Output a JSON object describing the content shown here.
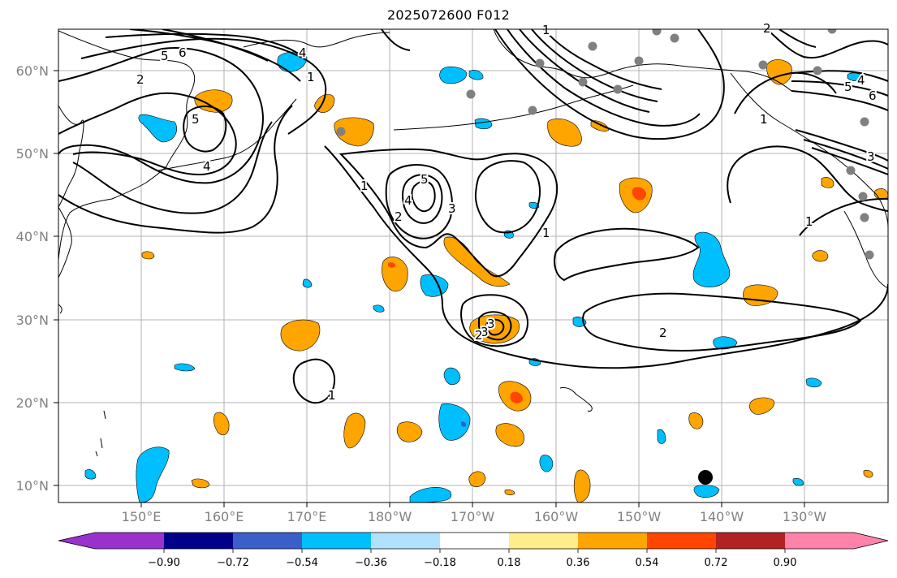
{
  "title": "2025072600 F012",
  "map": {
    "lat_labels": [
      "60°N",
      "50°N",
      "40°N",
      "30°N",
      "20°N",
      "10°N"
    ],
    "lon_labels": [
      "150°E",
      "160°E",
      "170°E",
      "180°W",
      "170°W",
      "160°W",
      "150°W",
      "140°W",
      "130°W"
    ],
    "grid": true,
    "contour_color": "#000000",
    "coastline_color": "#000000",
    "station_marker_color": "#808080",
    "storm_marker_color": "#000000"
  },
  "colorbar": {
    "tick_labels": [
      "−0.90",
      "−0.72",
      "−0.54",
      "−0.36",
      "−0.18",
      "0.18",
      "0.36",
      "0.54",
      "0.72",
      "0.90"
    ],
    "colors": [
      "#9932cc",
      "#00008b",
      "#3a5fcd",
      "#00bfff",
      "#b0e2ff",
      "#ffffff",
      "#ffec8b",
      "#ffa500",
      "#ff4500",
      "#b22222",
      "#ff82ab"
    ]
  },
  "contour_labels": [
    "5",
    "6",
    "2",
    "1",
    "5",
    "4",
    "1",
    "4",
    "5",
    "3",
    "2",
    "1",
    "3",
    "3",
    "2",
    "2",
    "1",
    "1",
    "2",
    "5",
    "4",
    "6",
    "1",
    "3",
    "4",
    "1"
  ]
}
